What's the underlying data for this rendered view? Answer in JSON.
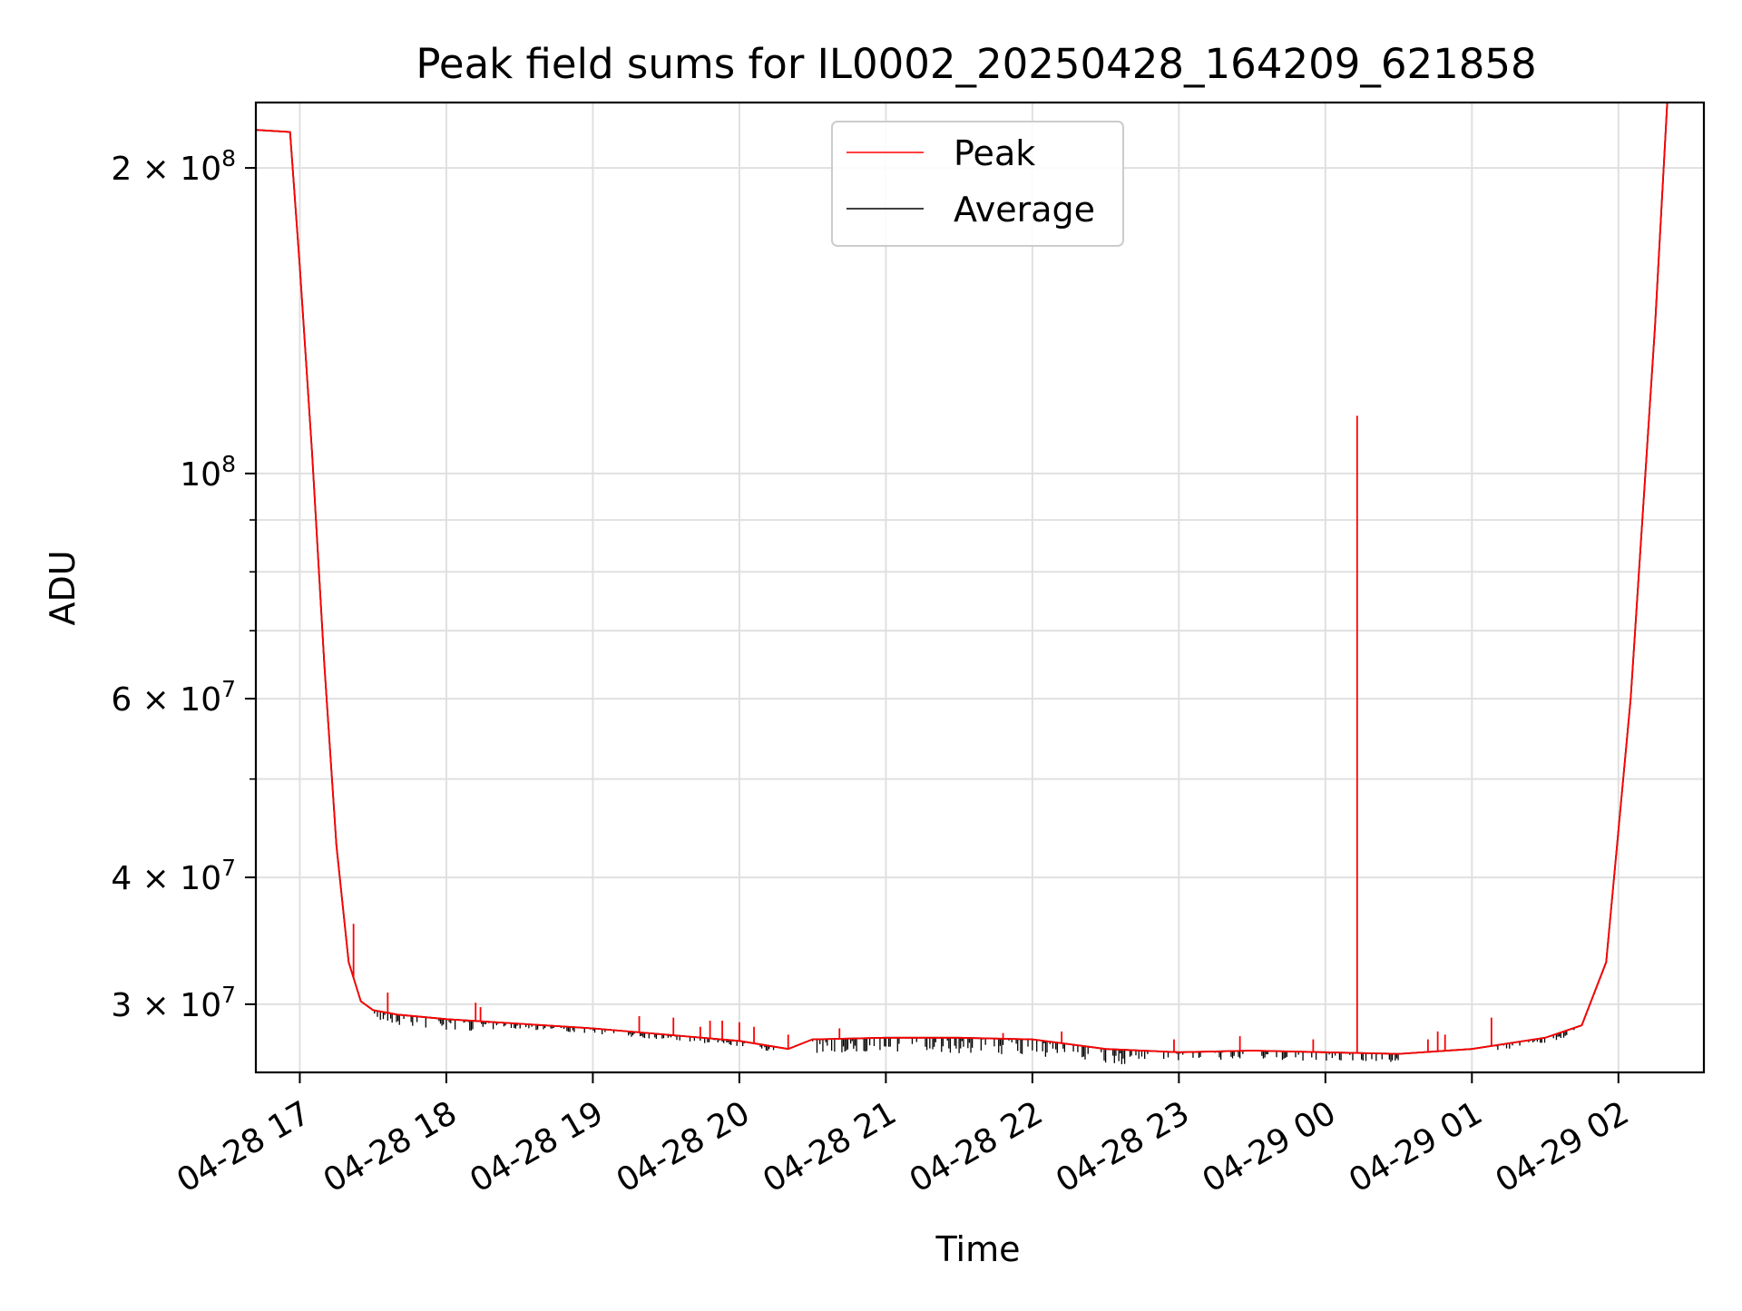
{
  "chart_data": {
    "type": "line",
    "title": "Peak field sums for IL0002_20250428_164209_621858",
    "xlabel": "Time",
    "ylabel": "ADU",
    "yscale": "log",
    "ylim": [
      25700000,
      232000000
    ],
    "xlim": [
      "04-28 16:42",
      "04-29 02:35"
    ],
    "grid": true,
    "legend_position": "top-center",
    "x_ticks": [
      "04-28 17",
      "04-28 18",
      "04-28 19",
      "04-28 20",
      "04-28 21",
      "04-28 22",
      "04-28 23",
      "04-29 00",
      "04-29 01",
      "04-29 02"
    ],
    "y_ticks": [
      {
        "value": 30000000,
        "coef": "3",
        "exp": "7"
      },
      {
        "value": 40000000,
        "coef": "4",
        "exp": "7"
      },
      {
        "value": 60000000,
        "coef": "6",
        "exp": "7"
      },
      {
        "value": 100000000,
        "coef": "",
        "exp": "8"
      },
      {
        "value": 200000000,
        "coef": "2",
        "exp": "8"
      }
    ],
    "series": [
      {
        "name": "Peak",
        "color": "#ff0000",
        "x": [
          "04-28 16:42",
          "04-28 16:56",
          "04-28 17:00",
          "04-28 17:05",
          "04-28 17:10",
          "04-28 17:15",
          "04-28 17:20",
          "04-28 17:25",
          "04-28 17:30",
          "04-28 17:40",
          "04-28 18:00",
          "04-28 18:30",
          "04-28 19:00",
          "04-28 19:30",
          "04-28 20:00",
          "04-28 20:20",
          "04-28 20:30",
          "04-28 21:00",
          "04-28 21:30",
          "04-28 22:00",
          "04-28 22:30",
          "04-28 23:00",
          "04-28 23:30",
          "04-29 00:00",
          "04-29 00:30",
          "04-29 01:00",
          "04-29 01:30",
          "04-29 01:45",
          "04-29 01:55",
          "04-29 02:05",
          "04-29 02:15",
          "04-29 02:20",
          "04-29 02:35"
        ],
        "y": [
          218000000,
          217000000,
          160000000,
          105000000,
          65000000,
          43000000,
          33000000,
          30200000,
          29600000,
          29300000,
          29000000,
          28700000,
          28400000,
          28000000,
          27600000,
          27100000,
          27700000,
          27800000,
          27800000,
          27700000,
          27100000,
          26900000,
          27000000,
          26900000,
          26800000,
          27100000,
          27800000,
          28600000,
          33000000,
          60000000,
          140000000,
          232000000,
          232000000
        ],
        "spikes": [
          {
            "x": "04-28 17:22",
            "y": 36000000
          },
          {
            "x": "04-28 17:36",
            "y": 30800000
          },
          {
            "x": "04-28 18:12",
            "y": 30100000
          },
          {
            "x": "04-28 18:14",
            "y": 29800000
          },
          {
            "x": "04-28 19:19",
            "y": 29200000
          },
          {
            "x": "04-28 19:33",
            "y": 29100000
          },
          {
            "x": "04-28 19:44",
            "y": 28500000
          },
          {
            "x": "04-28 19:48",
            "y": 28900000
          },
          {
            "x": "04-28 19:53",
            "y": 28900000
          },
          {
            "x": "04-28 20:00",
            "y": 28800000
          },
          {
            "x": "04-28 20:06",
            "y": 28500000
          },
          {
            "x": "04-28 20:20",
            "y": 28000000
          },
          {
            "x": "04-28 20:41",
            "y": 28400000
          },
          {
            "x": "04-28 21:48",
            "y": 28100000
          },
          {
            "x": "04-28 22:12",
            "y": 28200000
          },
          {
            "x": "04-28 22:58",
            "y": 27700000
          },
          {
            "x": "04-28 23:25",
            "y": 27900000
          },
          {
            "x": "04-28 23:55",
            "y": 27700000
          },
          {
            "x": "04-29 00:13",
            "y": 114000000
          },
          {
            "x": "04-29 00:42",
            "y": 27700000
          },
          {
            "x": "04-29 00:46",
            "y": 28200000
          },
          {
            "x": "04-29 00:49",
            "y": 28000000
          },
          {
            "x": "04-29 01:08",
            "y": 29100000
          }
        ]
      },
      {
        "name": "Average",
        "color": "#000000",
        "x": [
          "04-28 16:42",
          "04-28 16:56",
          "04-28 17:00",
          "04-28 17:05",
          "04-28 17:10",
          "04-28 17:15",
          "04-28 17:20",
          "04-28 17:25",
          "04-28 17:30",
          "04-28 17:40",
          "04-28 18:00",
          "04-28 18:30",
          "04-28 19:00",
          "04-28 19:30",
          "04-28 20:00",
          "04-28 20:20",
          "04-28 20:30",
          "04-28 21:00",
          "04-28 21:30",
          "04-28 22:00",
          "04-28 22:30",
          "04-28 23:00",
          "04-28 23:30",
          "04-29 00:00",
          "04-29 00:30",
          "04-29 01:00",
          "04-29 01:30",
          "04-29 01:45",
          "04-29 01:55",
          "04-29 02:05",
          "04-29 02:15",
          "04-29 02:20",
          "04-29 02:35"
        ],
        "y": [
          218000000,
          217000000,
          160000000,
          105000000,
          65000000,
          43000000,
          33000000,
          30200000,
          29600000,
          29300000,
          29000000,
          28700000,
          28400000,
          28000000,
          27600000,
          27100000,
          27700000,
          27800000,
          27800000,
          27700000,
          27100000,
          26900000,
          27000000,
          26900000,
          26800000,
          27100000,
          27800000,
          28600000,
          33000000,
          60000000,
          140000000,
          232000000,
          232000000
        ],
        "noise_ranges": [
          {
            "from": "04-28 17:30",
            "to": "04-28 18:20",
            "depth": 0.025
          },
          {
            "from": "04-28 18:20",
            "to": "04-28 20:20",
            "depth": 0.012
          },
          {
            "from": "04-28 20:30",
            "to": "04-28 22:40",
            "depth": 0.035
          },
          {
            "from": "04-28 22:40",
            "to": "04-29 00:30",
            "depth": 0.02
          },
          {
            "from": "04-29 01:10",
            "to": "04-29 01:45",
            "depth": 0.015
          }
        ]
      }
    ]
  }
}
